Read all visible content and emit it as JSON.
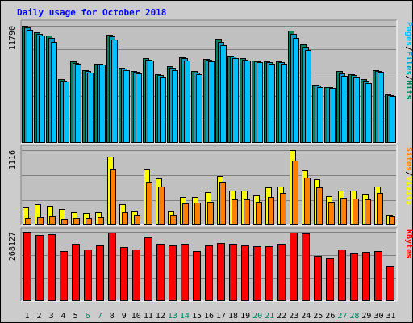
{
  "chart_data": {
    "type": "bar",
    "title": "Daily usage for October 2018",
    "categories": [
      "1",
      "2",
      "3",
      "4",
      "5",
      "6",
      "7",
      "8",
      "9",
      "10",
      "11",
      "12",
      "13",
      "14",
      "15",
      "16",
      "17",
      "18",
      "19",
      "20",
      "21",
      "22",
      "23",
      "24",
      "25",
      "26",
      "27",
      "28",
      "29",
      "30",
      "31"
    ],
    "weekend_days": [
      "6",
      "7",
      "13",
      "14",
      "20",
      "21",
      "27",
      "28"
    ],
    "panels": [
      {
        "id": "pages_files_hits",
        "max_label": "11790",
        "right_label": [
          "Pages",
          "/",
          "Files",
          "/",
          "Hits"
        ],
        "series": [
          {
            "name": "Hits",
            "color": "#00805c",
            "values": [
              11790,
              11150,
              10850,
              6400,
              8200,
              7350,
              8000,
              10900,
              7600,
              7250,
              8550,
              6950,
              7700,
              8650,
              7200,
              8450,
              10500,
              8800,
              8550,
              8300,
              8200,
              8200,
              11300,
              9950,
              5850,
              5650,
              7200,
              6900,
              6450,
              7300,
              4900
            ]
          },
          {
            "name": "Files",
            "color": "#00a0c0",
            "values": [
              11650,
              11000,
              10550,
              6300,
              8050,
              7250,
              7950,
              10700,
              7450,
              7150,
              8400,
              6850,
              7550,
              8500,
              7100,
              8350,
              10200,
              8700,
              8400,
              8200,
              8100,
              8100,
              11000,
              9650,
              5750,
              5600,
              7000,
              6800,
              6300,
              7250,
              4800
            ]
          },
          {
            "name": "Pages",
            "color": "#00c0ff",
            "values": [
              11400,
              10850,
              10150,
              6150,
              8000,
              7100,
              7850,
              10400,
              7350,
              7000,
              8300,
              6700,
              7350,
              8300,
              6950,
              8250,
              9800,
              8550,
              8300,
              8100,
              8000,
              8000,
              10600,
              9350,
              5650,
              5500,
              6750,
              6650,
              6050,
              7150,
              4700
            ]
          }
        ]
      },
      {
        "id": "sites_visits",
        "max_label": "1116",
        "right_label": [
          "Sites",
          "/",
          "Visits"
        ],
        "series": [
          {
            "name": "Visits",
            "color": "#ffff00",
            "values": [
              280,
              310,
              290,
              240,
              190,
              180,
              190,
              1020,
              310,
              220,
              840,
              690,
              220,
              420,
              420,
              490,
              730,
              520,
              520,
              440,
              560,
              580,
              1116,
              810,
              680,
              430,
              520,
              520,
              470,
              580,
              160
            ]
          },
          {
            "name": "Sites",
            "color": "#ff8000",
            "values": [
              110,
              120,
              130,
              100,
              110,
              110,
              120,
              840,
              190,
              150,
              630,
              580,
              150,
              320,
              330,
              350,
              640,
              380,
              380,
              350,
              420,
              480,
              960,
              710,
              560,
              350,
              410,
              400,
              380,
              480,
              130
            ]
          }
        ]
      },
      {
        "id": "kbytes",
        "max_label": "268127",
        "right_label": [
          "KBytes"
        ],
        "series": [
          {
            "name": "KBytes",
            "color": "#ff0000",
            "values": [
              268127,
              256000,
              259000,
              193000,
              221000,
              199000,
              214000,
              264000,
              209000,
              200000,
              245000,
              220000,
              214000,
              220000,
              194000,
              216000,
              224000,
              222000,
              214000,
              213000,
              212000,
              222000,
              264000,
              261000,
              175000,
              164000,
              201000,
              186000,
              189000,
              192000,
              134000
            ]
          }
        ]
      }
    ]
  }
}
